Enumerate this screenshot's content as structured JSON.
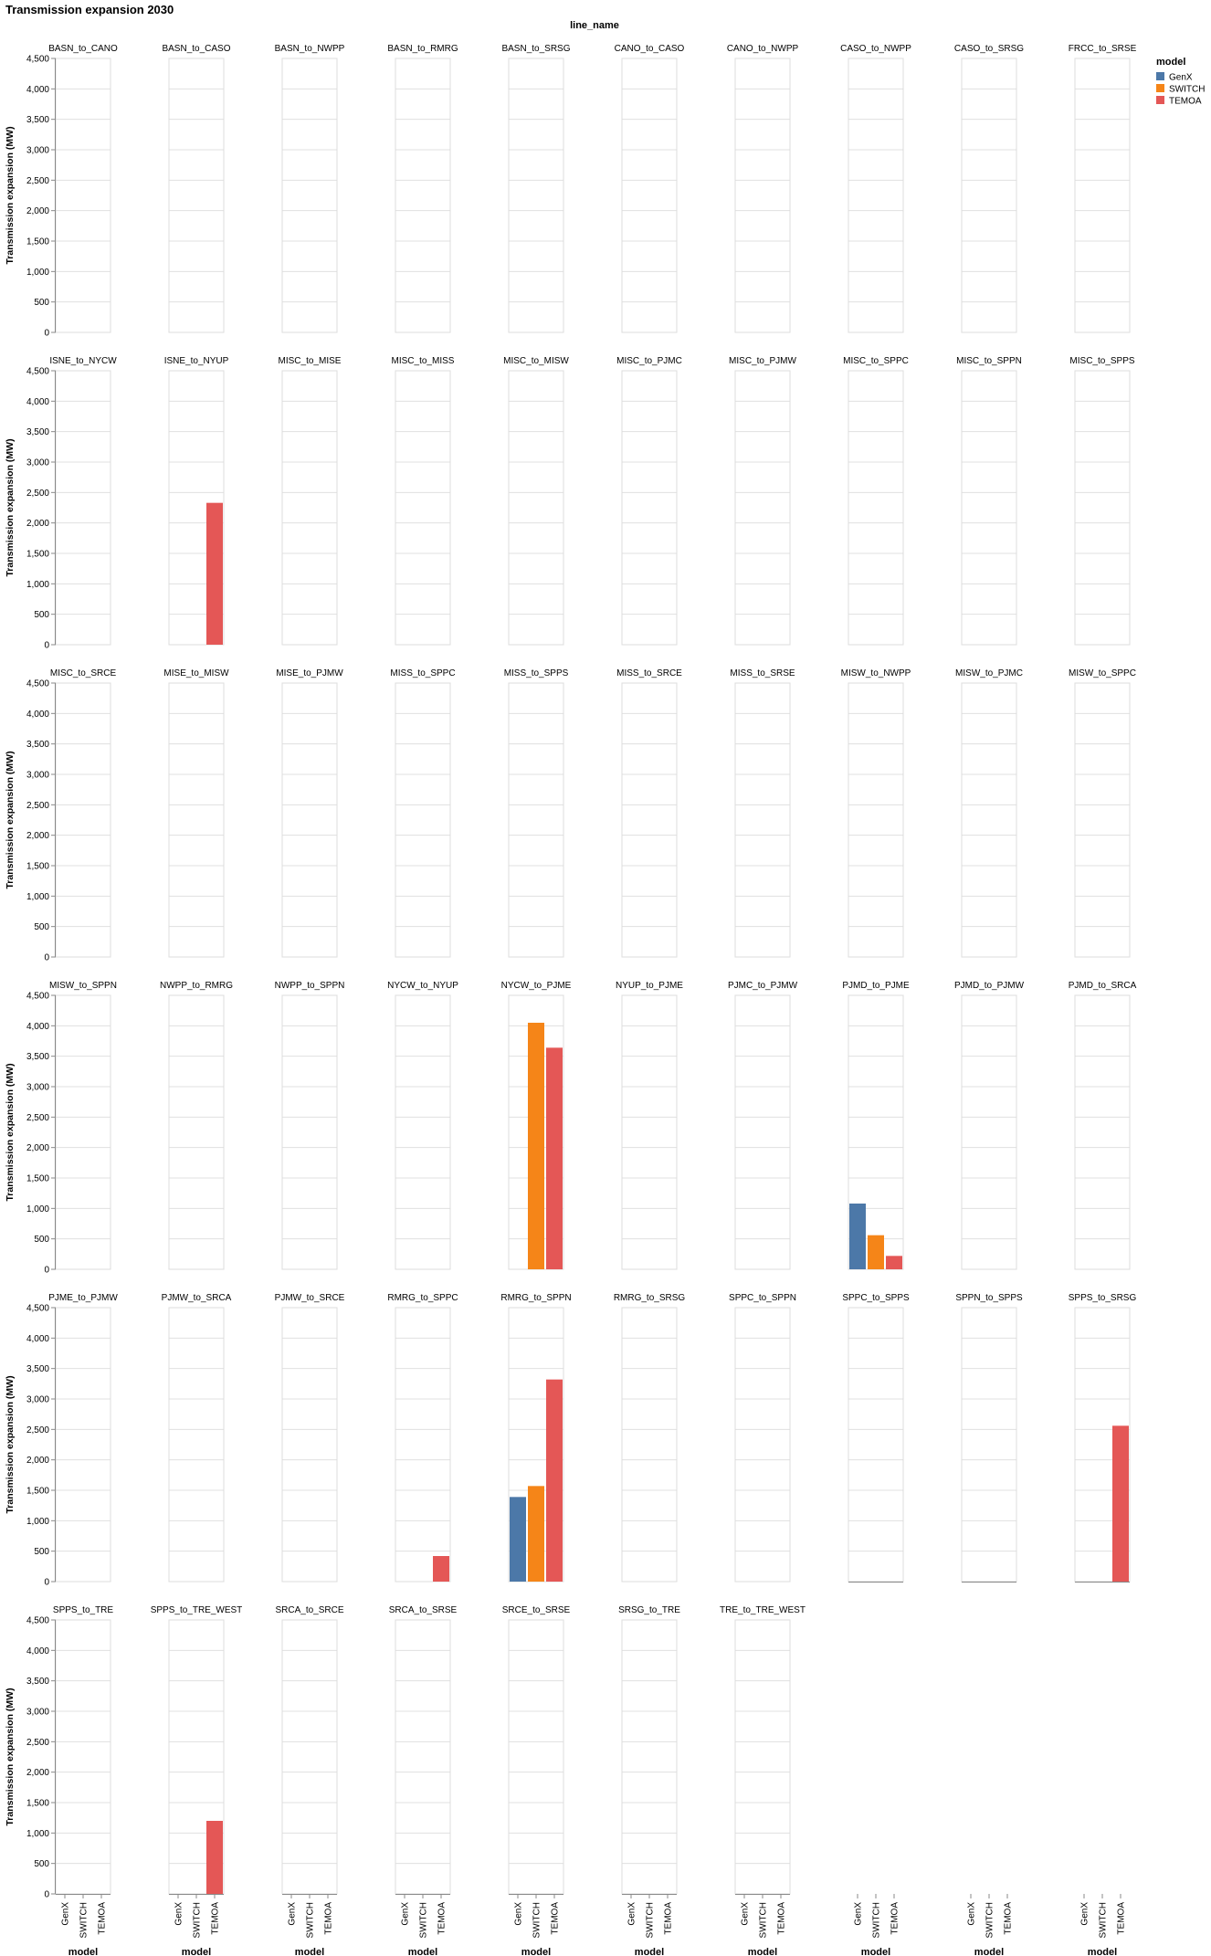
{
  "chart_data": {
    "type": "bar",
    "title": "Transmission expansion 2030",
    "column_header": "line_name",
    "ylabel": "Transmission expansion (MW)",
    "xlabel": "model",
    "ylim": [
      0,
      4500
    ],
    "yticks": [
      0,
      500,
      1000,
      1500,
      2000,
      2500,
      3000,
      3500,
      4000,
      4500
    ],
    "ytick_labels": [
      "0",
      "500",
      "1,000",
      "1,500",
      "2,000",
      "2,500",
      "3,000",
      "3,500",
      "4,000",
      "4,500"
    ],
    "grid": true,
    "legend_position": "top-right",
    "categories": [
      "GenX",
      "SWITCH",
      "TEMOA"
    ],
    "legend": {
      "title": "model",
      "items": [
        {
          "name": "GenX",
          "color": "#4c78a8"
        },
        {
          "name": "SWITCH",
          "color": "#f58518"
        },
        {
          "name": "TEMOA",
          "color": "#e45756"
        }
      ]
    },
    "facets": [
      {
        "name": "BASN_to_CANO",
        "values": [
          0,
          0,
          0
        ]
      },
      {
        "name": "BASN_to_CASO",
        "values": [
          0,
          0,
          0
        ]
      },
      {
        "name": "BASN_to_NWPP",
        "values": [
          0,
          0,
          0
        ]
      },
      {
        "name": "BASN_to_RMRG",
        "values": [
          0,
          0,
          0
        ]
      },
      {
        "name": "BASN_to_SRSG",
        "values": [
          0,
          0,
          0
        ]
      },
      {
        "name": "CANO_to_CASO",
        "values": [
          0,
          0,
          0
        ]
      },
      {
        "name": "CANO_to_NWPP",
        "values": [
          0,
          0,
          0
        ]
      },
      {
        "name": "CASO_to_NWPP",
        "values": [
          0,
          0,
          0
        ]
      },
      {
        "name": "CASO_to_SRSG",
        "values": [
          0,
          0,
          0
        ]
      },
      {
        "name": "FRCC_to_SRSE",
        "values": [
          0,
          0,
          0
        ]
      },
      {
        "name": "ISNE_to_NYCW",
        "values": [
          0,
          0,
          0
        ]
      },
      {
        "name": "ISNE_to_NYUP",
        "values": [
          0,
          0,
          2330
        ]
      },
      {
        "name": "MISC_to_MISE",
        "values": [
          0,
          0,
          0
        ]
      },
      {
        "name": "MISC_to_MISS",
        "values": [
          0,
          0,
          0
        ]
      },
      {
        "name": "MISC_to_MISW",
        "values": [
          0,
          0,
          0
        ]
      },
      {
        "name": "MISC_to_PJMC",
        "values": [
          0,
          0,
          0
        ]
      },
      {
        "name": "MISC_to_PJMW",
        "values": [
          0,
          0,
          0
        ]
      },
      {
        "name": "MISC_to_SPPC",
        "values": [
          0,
          0,
          0
        ]
      },
      {
        "name": "MISC_to_SPPN",
        "values": [
          0,
          0,
          0
        ]
      },
      {
        "name": "MISC_to_SPPS",
        "values": [
          0,
          0,
          0
        ]
      },
      {
        "name": "MISC_to_SRCE",
        "values": [
          0,
          0,
          0
        ]
      },
      {
        "name": "MISE_to_MISW",
        "values": [
          0,
          0,
          0
        ]
      },
      {
        "name": "MISE_to_PJMW",
        "values": [
          0,
          0,
          0
        ]
      },
      {
        "name": "MISS_to_SPPC",
        "values": [
          0,
          0,
          0
        ]
      },
      {
        "name": "MISS_to_SPPS",
        "values": [
          0,
          0,
          0
        ]
      },
      {
        "name": "MISS_to_SRCE",
        "values": [
          0,
          0,
          0
        ]
      },
      {
        "name": "MISS_to_SRSE",
        "values": [
          0,
          0,
          0
        ]
      },
      {
        "name": "MISW_to_NWPP",
        "values": [
          0,
          0,
          0
        ]
      },
      {
        "name": "MISW_to_PJMC",
        "values": [
          0,
          0,
          0
        ]
      },
      {
        "name": "MISW_to_SPPC",
        "values": [
          0,
          0,
          0
        ]
      },
      {
        "name": "MISW_to_SPPN",
        "values": [
          0,
          0,
          0
        ]
      },
      {
        "name": "NWPP_to_RMRG",
        "values": [
          0,
          0,
          0
        ]
      },
      {
        "name": "NWPP_to_SPPN",
        "values": [
          0,
          0,
          0
        ]
      },
      {
        "name": "NYCW_to_NYUP",
        "values": [
          0,
          0,
          0
        ]
      },
      {
        "name": "NYCW_to_PJME",
        "values": [
          0,
          4050,
          3640
        ]
      },
      {
        "name": "NYUP_to_PJME",
        "values": [
          0,
          0,
          0
        ]
      },
      {
        "name": "PJMC_to_PJMW",
        "values": [
          0,
          0,
          0
        ]
      },
      {
        "name": "PJMD_to_PJME",
        "values": [
          1080,
          560,
          220
        ]
      },
      {
        "name": "PJMD_to_PJMW",
        "values": [
          0,
          0,
          0
        ]
      },
      {
        "name": "PJMD_to_SRCA",
        "values": [
          0,
          0,
          0
        ]
      },
      {
        "name": "PJME_to_PJMW",
        "values": [
          0,
          0,
          0
        ]
      },
      {
        "name": "PJMW_to_SRCA",
        "values": [
          0,
          0,
          0
        ]
      },
      {
        "name": "PJMW_to_SRCE",
        "values": [
          0,
          0,
          0
        ]
      },
      {
        "name": "RMRG_to_SPPC",
        "values": [
          0,
          0,
          420
        ]
      },
      {
        "name": "RMRG_to_SPPN",
        "values": [
          1390,
          1570,
          3320
        ]
      },
      {
        "name": "RMRG_to_SRSG",
        "values": [
          0,
          0,
          0
        ]
      },
      {
        "name": "SPPC_to_SPPN",
        "values": [
          0,
          0,
          0
        ]
      },
      {
        "name": "SPPC_to_SPPS",
        "values": [
          0,
          0,
          0
        ]
      },
      {
        "name": "SPPN_to_SPPS",
        "values": [
          0,
          0,
          0
        ]
      },
      {
        "name": "SPPS_to_SRSG",
        "values": [
          0,
          0,
          2560
        ]
      },
      {
        "name": "SPPS_to_TRE",
        "values": [
          0,
          0,
          0
        ]
      },
      {
        "name": "SPPS_to_TRE_WEST",
        "values": [
          0,
          0,
          1200
        ]
      },
      {
        "name": "SRCA_to_SRCE",
        "values": [
          0,
          0,
          0
        ]
      },
      {
        "name": "SRCA_to_SRSE",
        "values": [
          0,
          0,
          0
        ]
      },
      {
        "name": "SRCE_to_SRSE",
        "values": [
          0,
          0,
          0
        ]
      },
      {
        "name": "SRSG_to_TRE",
        "values": [
          0,
          0,
          0
        ]
      },
      {
        "name": "TRE_to_TRE_WEST",
        "values": [
          0,
          0,
          0
        ]
      }
    ]
  }
}
